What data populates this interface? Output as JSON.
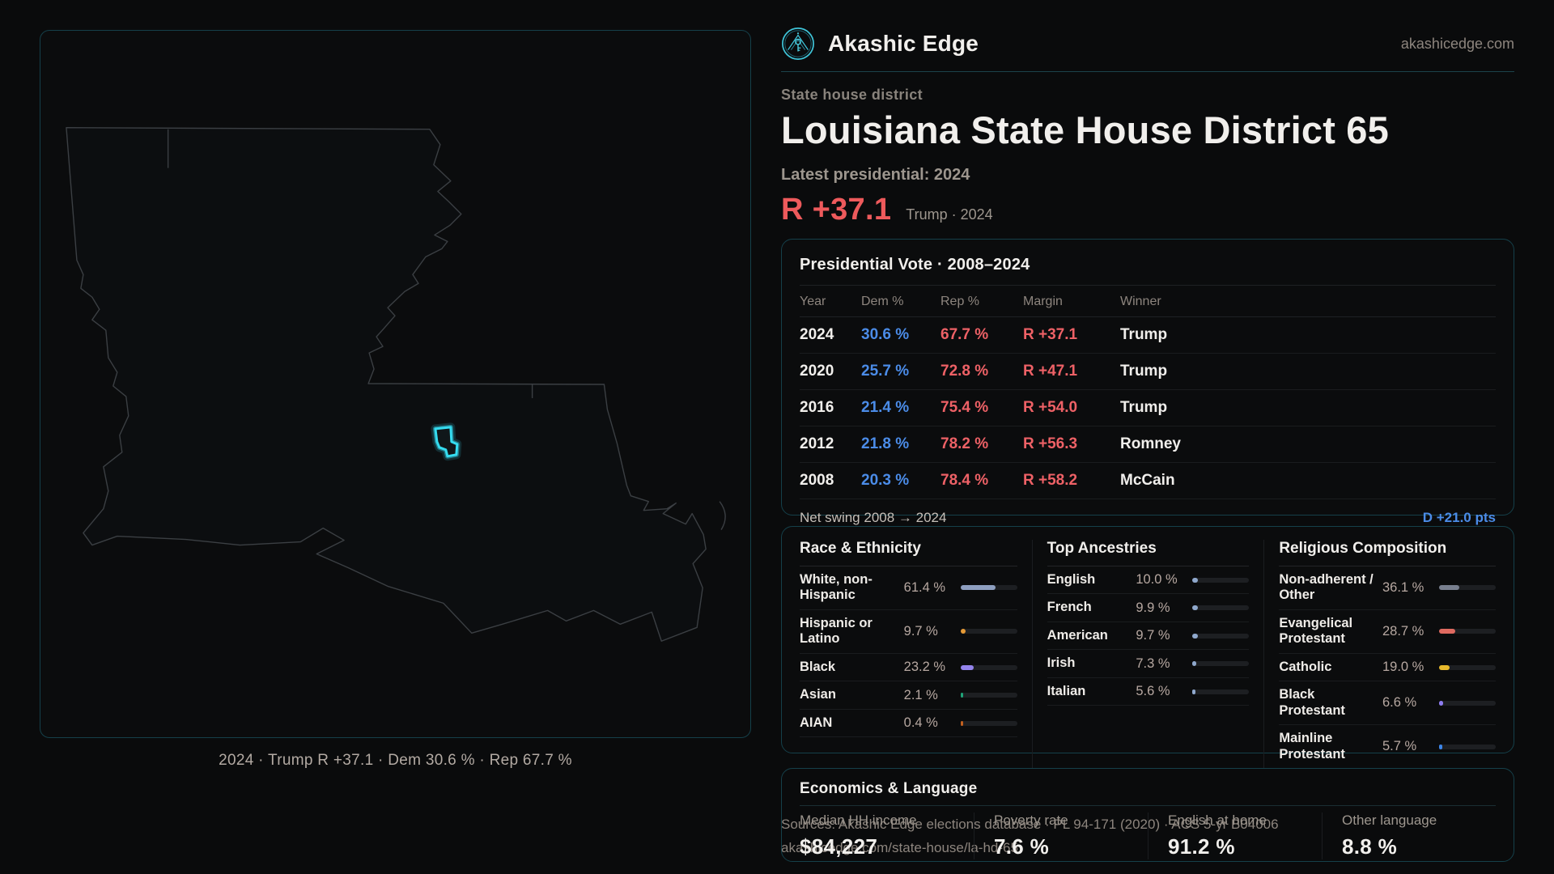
{
  "brand": {
    "name": "Akashic Edge",
    "domain": "akashicedge.com"
  },
  "page": {
    "kicker": "State house district",
    "title": "Louisiana State House District 65",
    "latest_label": "Latest presidential: 2024",
    "margin_big": "R +37.1",
    "margin_context": "Trump · 2024"
  },
  "map": {
    "caption": "2024 · Trump R +37.1 · Dem 30.6 % · Rep 67.7 %",
    "highlight_color": "#35dcf0",
    "outline_color": "#3b3f43"
  },
  "vote_table": {
    "title": "Presidential Vote · 2008–2024",
    "columns": [
      "Year",
      "Dem %",
      "Rep %",
      "Margin",
      "Winner"
    ],
    "rows": [
      {
        "year": "2024",
        "dem": "30.6 %",
        "rep": "67.7 %",
        "margin": "R +37.1",
        "winner": "Trump"
      },
      {
        "year": "2020",
        "dem": "25.7 %",
        "rep": "72.8 %",
        "margin": "R +47.1",
        "winner": "Trump"
      },
      {
        "year": "2016",
        "dem": "21.4 %",
        "rep": "75.4 %",
        "margin": "R +54.0",
        "winner": "Trump"
      },
      {
        "year": "2012",
        "dem": "21.8 %",
        "rep": "78.2 %",
        "margin": "R +56.3",
        "winner": "Romney"
      },
      {
        "year": "2008",
        "dem": "20.3 %",
        "rep": "78.4 %",
        "margin": "R +58.2",
        "winner": "McCain"
      }
    ],
    "net_swing_label": "Net swing 2008 → 2024",
    "net_swing_value": "D +21.0 pts",
    "dem_color": "#4b8ce8",
    "rep_color": "#ee6166"
  },
  "demographics": {
    "race": {
      "title": "Race & Ethnicity",
      "rows": [
        {
          "label": "White, non-Hispanic",
          "value": "61.4 %",
          "pct": 61.4,
          "color": "#8e9fc0"
        },
        {
          "label": "Hispanic or Latino",
          "value": "9.7 %",
          "pct": 9.7,
          "color": "#e69a36"
        },
        {
          "label": "Black",
          "value": "23.2 %",
          "pct": 23.2,
          "color": "#9484ec"
        },
        {
          "label": "Asian",
          "value": "2.1 %",
          "pct": 2.1,
          "color": "#1fa378"
        },
        {
          "label": "AIAN",
          "value": "0.4 %",
          "pct": 0.4,
          "color": "#c2601f"
        }
      ]
    },
    "ancestries": {
      "title": "Top Ancestries",
      "rows": [
        {
          "label": "English",
          "value": "10.0 %",
          "pct": 10.0,
          "color": "#8fa8cc"
        },
        {
          "label": "French",
          "value": "9.9 %",
          "pct": 9.9,
          "color": "#8fa8cc"
        },
        {
          "label": "American",
          "value": "9.7 %",
          "pct": 9.7,
          "color": "#8fa8cc"
        },
        {
          "label": "Irish",
          "value": "7.3 %",
          "pct": 7.3,
          "color": "#8fa8cc"
        },
        {
          "label": "Italian",
          "value": "5.6 %",
          "pct": 5.6,
          "color": "#8fa8cc"
        }
      ]
    },
    "religion": {
      "title": "Religious Composition",
      "rows": [
        {
          "label": "Non-adherent / Other",
          "value": "36.1 %",
          "pct": 36.1,
          "color": "#787f8e"
        },
        {
          "label": "Evangelical Protestant",
          "value": "28.7 %",
          "pct": 28.7,
          "color": "#df6a60"
        },
        {
          "label": "Catholic",
          "value": "19.0 %",
          "pct": 19.0,
          "color": "#e7b92c"
        },
        {
          "label": "Black Protestant",
          "value": "6.6 %",
          "pct": 6.6,
          "color": "#8d7cf0"
        },
        {
          "label": "Mainline Protestant",
          "value": "5.7 %",
          "pct": 5.7,
          "color": "#3d86e8"
        }
      ]
    }
  },
  "economics": {
    "title": "Economics & Language",
    "stats": [
      {
        "label": "Median HH income",
        "value": "$84,227"
      },
      {
        "label": "Poverty rate",
        "value": "7.6 %"
      },
      {
        "label": "English at home",
        "value": "91.2 %"
      },
      {
        "label": "Other language",
        "value": "8.8 %"
      }
    ]
  },
  "sources": {
    "line1": "Sources: Akashic Edge elections database · PL 94-171 (2020) · ACS 5-yr B04006",
    "line2": "akashicedge.com/state-house/la-hd-65"
  }
}
